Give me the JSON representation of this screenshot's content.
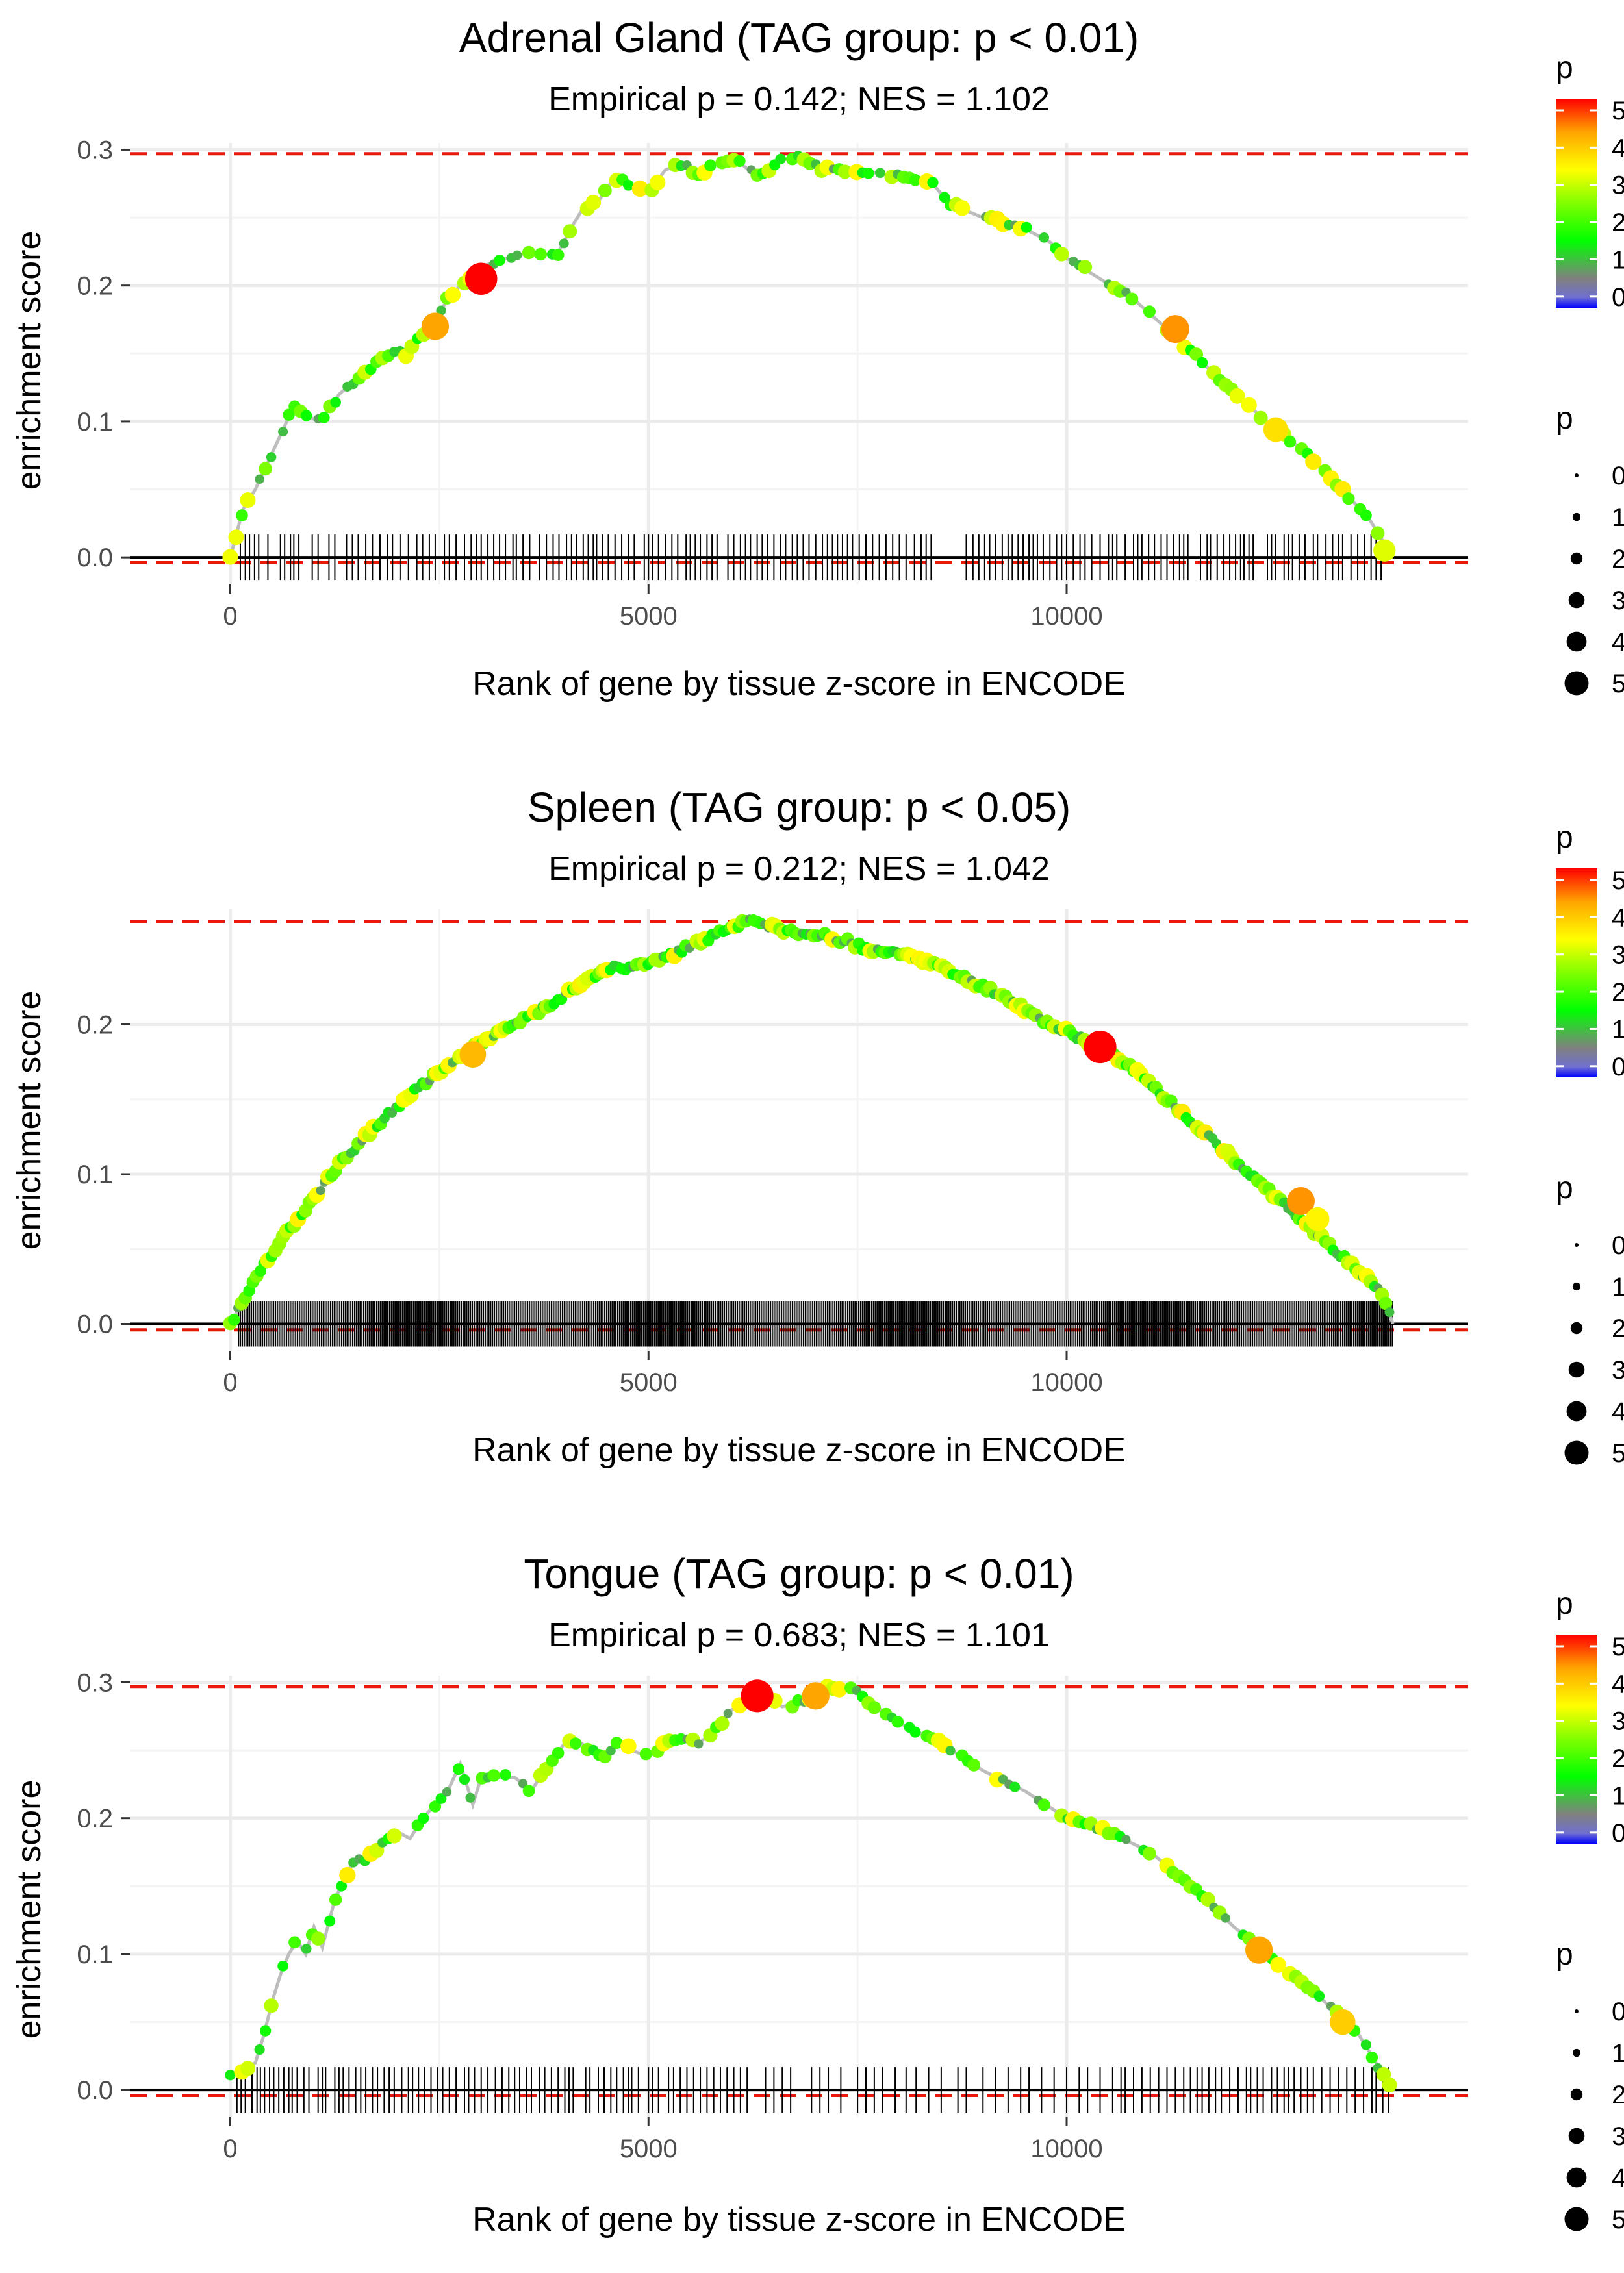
{
  "chart_data": [
    {
      "type": "line",
      "title": "Adrenal Gland (TAG group: p < 0.01)",
      "subtitle": "Empirical p = 0.142; NES = 1.102",
      "xlabel": "Rank of gene by tissue z-score in ENCODE",
      "ylabel": "enrichment score",
      "xlim": [
        -1200,
        14800
      ],
      "ylim": [
        -0.02,
        0.305
      ],
      "xticks": [
        0,
        5000,
        10000
      ],
      "xtick_labels": [
        "0",
        "5000",
        "10000"
      ],
      "yticks": [
        0.0,
        0.1,
        0.2,
        0.3
      ],
      "ytick_labels": [
        "0.0",
        "0.1",
        "0.2",
        "0.3"
      ],
      "max_es": 0.297,
      "min_es": -0.004,
      "es_curve": {
        "x": [
          0,
          150,
          300,
          450,
          600,
          750,
          900,
          1050,
          1200,
          1300,
          1500,
          1700,
          1900,
          2100,
          2300,
          2450,
          2600,
          2750,
          2900,
          3050,
          3300,
          3600,
          3900,
          4100,
          4200,
          4400,
          4600,
          4800,
          5000,
          5200,
          5400,
          5600,
          5800,
          6000,
          6300,
          6600,
          6800,
          7100,
          7500,
          8000,
          8400,
          8600,
          9000,
          9400,
          9800,
          10000,
          10400,
          10800,
          11200,
          11600,
          12000,
          12400,
          12800,
          13200,
          13600,
          13900
        ],
        "y": [
          0.0,
          0.035,
          0.05,
          0.07,
          0.09,
          0.11,
          0.105,
          0.1,
          0.11,
          0.12,
          0.13,
          0.14,
          0.15,
          0.15,
          0.165,
          0.175,
          0.19,
          0.2,
          0.205,
          0.215,
          0.22,
          0.225,
          0.222,
          0.245,
          0.255,
          0.262,
          0.28,
          0.272,
          0.268,
          0.285,
          0.29,
          0.282,
          0.289,
          0.295,
          0.28,
          0.292,
          0.297,
          0.285,
          0.285,
          0.28,
          0.275,
          0.26,
          0.25,
          0.245,
          0.232,
          0.22,
          0.205,
          0.19,
          0.168,
          0.145,
          0.12,
          0.1,
          0.08,
          0.055,
          0.03,
          0.0
        ]
      },
      "highlight_points": [
        {
          "x": 2450,
          "y": 0.17,
          "p": 4.2
        },
        {
          "x": 3000,
          "y": 0.205,
          "p": 5.2
        },
        {
          "x": 11300,
          "y": 0.168,
          "p": 4.3
        },
        {
          "x": 12500,
          "y": 0.094,
          "p": 3.6
        },
        {
          "x": 13800,
          "y": 0.005,
          "p": 3.1
        }
      ],
      "hit_ranks_sample": [
        120,
        180,
        230,
        290,
        340,
        450,
        600,
        650,
        720,
        760,
        820,
        980,
        1050,
        1180,
        1250,
        1390,
        1460,
        1530,
        1620,
        1700,
        1790,
        1880,
        1940,
        2030,
        2130,
        2230,
        2300,
        2380,
        2450,
        2560,
        2620,
        2700,
        2800,
        2880,
        2940,
        3000,
        3080,
        3150,
        3220,
        3290,
        3380,
        3420,
        3500,
        3580,
        3700,
        3780,
        3860,
        3930,
        4020,
        4080,
        4140,
        4220,
        4280,
        4340,
        4380,
        4450,
        4520,
        4600,
        4680,
        4760,
        4830,
        4950,
        5000,
        5050,
        5120,
        5200,
        5280,
        5350,
        5450,
        5500,
        5560,
        5620,
        5700,
        5760,
        5820,
        5950,
        6020,
        6100,
        6160,
        6220,
        6300,
        6360,
        6420,
        6500,
        6580,
        6640,
        6720,
        6780,
        6850,
        6920,
        7000,
        7080,
        7140,
        7200,
        7260,
        7320,
        7380,
        7440,
        7520,
        7600,
        7680,
        7760,
        7840,
        7920,
        8000,
        8080,
        8180,
        8260,
        8320,
        8380,
        8800,
        8880,
        8950,
        9020,
        9080,
        9150,
        9230,
        9300,
        9350,
        9420,
        9480,
        9550,
        9600,
        9650,
        9720,
        9800,
        9880,
        9940,
        10000,
        10080,
        10160,
        10220,
        10300,
        10400,
        10500,
        10550,
        10600,
        10700,
        10800,
        10850,
        10900,
        10980,
        11050,
        11130,
        11200,
        11280,
        11350,
        11400,
        11450,
        11600,
        11680,
        11720,
        11800,
        11880,
        11950,
        12020,
        12080,
        12120,
        12180,
        12230,
        12400,
        12450,
        12500,
        12600,
        12650,
        12700,
        12780,
        12850,
        12950,
        13000,
        13100,
        13180,
        13250,
        13300,
        13400,
        13480,
        13560,
        13640,
        13700,
        13760
      ]
    },
    {
      "type": "line",
      "title": "Spleen (TAG group: p < 0.05)",
      "subtitle": "Empirical p = 0.212; NES = 1.042",
      "xlabel": "Rank of gene by tissue z-score in ENCODE",
      "ylabel": "enrichment score",
      "xlim": [
        -1200,
        14800
      ],
      "ylim": [
        -0.018,
        0.277
      ],
      "xticks": [
        0,
        5000,
        10000
      ],
      "xtick_labels": [
        "0",
        "5000",
        "10000"
      ],
      "yticks": [
        0.0,
        0.1,
        0.2
      ],
      "ytick_labels": [
        "0.0",
        "0.1",
        "0.2"
      ],
      "max_es": 0.269,
      "min_es": -0.004,
      "es_curve": {
        "x": [
          0,
          200,
          400,
          600,
          800,
          1000,
          1200,
          1400,
          1600,
          1800,
          2000,
          2200,
          2400,
          2600,
          2800,
          3000,
          3200,
          3400,
          3600,
          3800,
          4000,
          4200,
          4400,
          4600,
          4800,
          5000,
          5200,
          5400,
          5600,
          5800,
          6000,
          6200,
          6400,
          6600,
          6800,
          7000,
          7200,
          7400,
          7600,
          7800,
          8000,
          8200,
          8400,
          8600,
          8800,
          9000,
          9200,
          9400,
          9600,
          9800,
          10000,
          10200,
          10400,
          10600,
          10800,
          11000,
          11200,
          11400,
          11600,
          11800,
          12000,
          12200,
          12400,
          12600,
          12800,
          13000,
          13200,
          13400,
          13600,
          13800,
          13900
        ],
        "y": [
          0.0,
          0.02,
          0.04,
          0.055,
          0.07,
          0.085,
          0.1,
          0.112,
          0.125,
          0.135,
          0.145,
          0.155,
          0.165,
          0.172,
          0.18,
          0.188,
          0.195,
          0.2,
          0.206,
          0.213,
          0.22,
          0.228,
          0.233,
          0.238,
          0.238,
          0.24,
          0.245,
          0.25,
          0.255,
          0.26,
          0.264,
          0.269,
          0.266,
          0.263,
          0.26,
          0.26,
          0.258,
          0.255,
          0.25,
          0.248,
          0.247,
          0.245,
          0.24,
          0.235,
          0.23,
          0.225,
          0.22,
          0.214,
          0.206,
          0.2,
          0.195,
          0.19,
          0.185,
          0.177,
          0.17,
          0.16,
          0.15,
          0.14,
          0.13,
          0.12,
          0.11,
          0.1,
          0.09,
          0.08,
          0.07,
          0.06,
          0.05,
          0.04,
          0.03,
          0.018,
          0.0
        ]
      },
      "highlight_points": [
        {
          "x": 2900,
          "y": 0.18,
          "p": 4.0
        },
        {
          "x": 10400,
          "y": 0.185,
          "p": 5.3
        },
        {
          "x": 12800,
          "y": 0.082,
          "p": 4.3
        },
        {
          "x": 13000,
          "y": 0.07,
          "p": 3.4
        }
      ],
      "hit_density": "dense (approx. every rank position from 100 to 13900)"
    },
    {
      "type": "line",
      "title": "Tongue (TAG group: p < 0.01)",
      "subtitle": "Empirical p = 0.683; NES = 1.101",
      "xlabel": "Rank of gene by tissue z-score in ENCODE",
      "ylabel": "enrichment score",
      "xlim": [
        -1200,
        14800
      ],
      "ylim": [
        -0.02,
        0.305
      ],
      "xticks": [
        0,
        5000,
        10000
      ],
      "xtick_labels": [
        "0",
        "5000",
        "10000"
      ],
      "yticks": [
        0.0,
        0.1,
        0.2,
        0.3
      ],
      "ytick_labels": [
        "0.0",
        "0.1",
        "0.2",
        "0.3"
      ],
      "max_es": 0.297,
      "min_es": -0.004,
      "es_curve": {
        "x": [
          0,
          150,
          300,
          400,
          500,
          600,
          700,
          800,
          900,
          1000,
          1100,
          1250,
          1400,
          1500,
          1650,
          1800,
          2000,
          2150,
          2300,
          2450,
          2600,
          2750,
          2800,
          2900,
          3000,
          3200,
          3400,
          3600,
          3800,
          4000,
          4200,
          4300,
          4500,
          4600,
          4800,
          5000,
          5200,
          5400,
          5600,
          5800,
          6000,
          6200,
          6400,
          6600,
          6800,
          7000,
          7200,
          7400,
          7500,
          8000,
          8500,
          9000,
          9500,
          10000,
          10500,
          11000,
          11500,
          12000,
          12500,
          13000,
          13500,
          13900
        ],
        "y": [
          0.01,
          0.015,
          0.02,
          0.04,
          0.065,
          0.085,
          0.1,
          0.11,
          0.1,
          0.12,
          0.105,
          0.14,
          0.16,
          0.17,
          0.17,
          0.18,
          0.19,
          0.185,
          0.2,
          0.21,
          0.22,
          0.24,
          0.23,
          0.21,
          0.23,
          0.23,
          0.23,
          0.22,
          0.24,
          0.255,
          0.255,
          0.25,
          0.245,
          0.255,
          0.25,
          0.245,
          0.255,
          0.26,
          0.255,
          0.265,
          0.28,
          0.285,
          0.29,
          0.282,
          0.285,
          0.29,
          0.297,
          0.295,
          0.292,
          0.27,
          0.255,
          0.235,
          0.22,
          0.2,
          0.19,
          0.175,
          0.15,
          0.12,
          0.095,
          0.07,
          0.04,
          0.0
        ]
      },
      "highlight_points": [
        {
          "x": 6300,
          "y": 0.29,
          "p": 5.3
        },
        {
          "x": 7000,
          "y": 0.29,
          "p": 4.2
        },
        {
          "x": 12300,
          "y": 0.103,
          "p": 4.2
        },
        {
          "x": 13300,
          "y": 0.05,
          "p": 3.8
        }
      ],
      "hit_ranks_sample": [
        80,
        130,
        180,
        260,
        320,
        360,
        410,
        470,
        520,
        580,
        640,
        700,
        740,
        800,
        880,
        940,
        1050,
        1100,
        1140,
        1250,
        1300,
        1350,
        1420,
        1500,
        1560,
        1620,
        1700,
        1760,
        1840,
        1900,
        1960,
        2050,
        2130,
        2180,
        2250,
        2320,
        2400,
        2480,
        2540,
        2620,
        2700,
        2800,
        2850,
        2920,
        3000,
        3080,
        3170,
        3250,
        3330,
        3400,
        3460,
        3540,
        3600,
        3700,
        3760,
        3840,
        3920,
        4000,
        4050,
        4100,
        4250,
        4300,
        4400,
        4470,
        4550,
        4620,
        4700,
        4760,
        4800,
        4880,
        5000,
        5050,
        5120,
        5240,
        5300,
        5380,
        5460,
        5540,
        5620,
        5700,
        5780,
        5860,
        5940,
        6020,
        6100,
        6180,
        6400,
        6500,
        6600,
        6700,
        6950,
        7050,
        7150,
        7300,
        7500,
        7600,
        7700,
        7800,
        7950,
        8080,
        8200,
        8350,
        8500,
        8700,
        8800,
        9000,
        9150,
        9300,
        9450,
        9550,
        9700,
        9850,
        10000,
        10150,
        10250,
        10400,
        10550,
        10650,
        10700,
        10800,
        10900,
        11000,
        11100,
        11200,
        11300,
        11400,
        11480,
        11560,
        11620,
        11700,
        11780,
        11850,
        11950,
        12050,
        12150,
        12200,
        12280,
        12350,
        12450,
        12520,
        12600,
        12650,
        12720,
        12800,
        12880,
        12950,
        13050,
        13150,
        13250,
        13350,
        13450,
        13550,
        13650,
        13700,
        13780,
        13850
      ]
    }
  ],
  "legend": {
    "color_title": "p",
    "color_ticks": [
      "5",
      "4",
      "3",
      "2",
      "1",
      "0"
    ],
    "size_title": "p",
    "size_ticks": [
      "0",
      "1",
      "2",
      "3",
      "4",
      "5"
    ],
    "colors": {
      "scale": [
        "#0000ff",
        "#8080c0",
        "#808080",
        "#00ff00",
        "#80ff00",
        "#ffff00",
        "#ffa500",
        "#ff0000"
      ],
      "curve": "#bdbdbd",
      "dashed": "#e8190c",
      "grid": "#ebebeb",
      "text": "#4d4d4d"
    }
  }
}
